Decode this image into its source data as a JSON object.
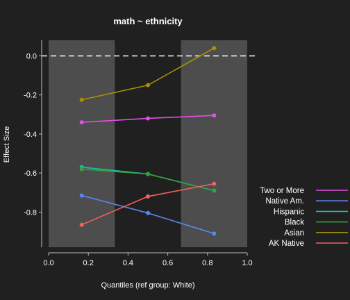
{
  "chart_data": {
    "type": "line",
    "title": "math ~ ethnicity",
    "xlabel": "Quantiles (ref group: White)",
    "ylabel": "Effect Size",
    "xlim": [
      0.0,
      1.0
    ],
    "ylim": [
      -0.98,
      0.08
    ],
    "xticks": [
      "0.0",
      "0.2",
      "0.4",
      "0.6",
      "0.8",
      "1.0"
    ],
    "yticks": [
      "0.0",
      "-0.2",
      "-0.4",
      "-0.6",
      "-0.8"
    ],
    "x": [
      0.1667,
      0.5,
      0.8333
    ],
    "reference_line": 0.0,
    "shaded_bands": [
      [
        0.0,
        0.3333
      ],
      [
        0.6667,
        1.0
      ]
    ],
    "legend_position": "right",
    "series": [
      {
        "name": "Two or More",
        "color": "#e44ee6",
        "values": [
          -0.34,
          -0.32,
          -0.305
        ]
      },
      {
        "name": "Native Am.",
        "color": "#5b85f0",
        "values": [
          -0.715,
          -0.805,
          -0.91
        ]
      },
      {
        "name": "Hispanic",
        "color": "#1fbdaa",
        "values": [
          -0.57,
          -0.605,
          -0.69
        ]
      },
      {
        "name": "Black",
        "color": "#36a33a",
        "values": [
          -0.58,
          -0.605,
          -0.69
        ]
      },
      {
        "name": "Asian",
        "color": "#a69006",
        "values": [
          -0.225,
          -0.15,
          0.04
        ]
      },
      {
        "name": "AK Native",
        "color": "#f0625c",
        "values": [
          -0.865,
          -0.72,
          -0.655
        ]
      }
    ]
  }
}
